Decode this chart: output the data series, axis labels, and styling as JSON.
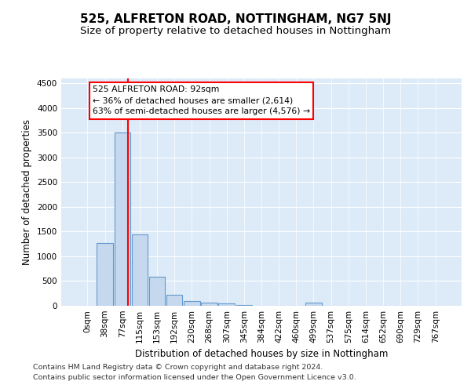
{
  "title": "525, ALFRETON ROAD, NOTTINGHAM, NG7 5NJ",
  "subtitle": "Size of property relative to detached houses in Nottingham",
  "xlabel": "Distribution of detached houses by size in Nottingham",
  "ylabel": "Number of detached properties",
  "bar_labels": [
    "0sqm",
    "38sqm",
    "77sqm",
    "115sqm",
    "153sqm",
    "192sqm",
    "230sqm",
    "268sqm",
    "307sqm",
    "345sqm",
    "384sqm",
    "422sqm",
    "460sqm",
    "499sqm",
    "537sqm",
    "575sqm",
    "614sqm",
    "652sqm",
    "690sqm",
    "729sqm",
    "767sqm"
  ],
  "bar_values": [
    5,
    1270,
    3500,
    1450,
    580,
    220,
    100,
    70,
    45,
    10,
    5,
    2,
    2,
    60,
    2,
    2,
    2,
    2,
    2,
    2,
    2
  ],
  "bar_color": "#c5d8ee",
  "bar_edge_color": "#6699cc",
  "red_line_color": "red",
  "property_line_x": 2.35,
  "annotation_line1": "525 ALFRETON ROAD: 92sqm",
  "annotation_line2": "← 36% of detached houses are smaller (2,614)",
  "annotation_line3": "63% of semi-detached houses are larger (4,576) →",
  "ylim": [
    0,
    4600
  ],
  "yticks": [
    0,
    500,
    1000,
    1500,
    2000,
    2500,
    3000,
    3500,
    4000,
    4500
  ],
  "plot_bg_color": "#ddeaf8",
  "grid_color": "#ffffff",
  "footer_line1": "Contains HM Land Registry data © Crown copyright and database right 2024.",
  "footer_line2": "Contains public sector information licensed under the Open Government Licence v3.0."
}
